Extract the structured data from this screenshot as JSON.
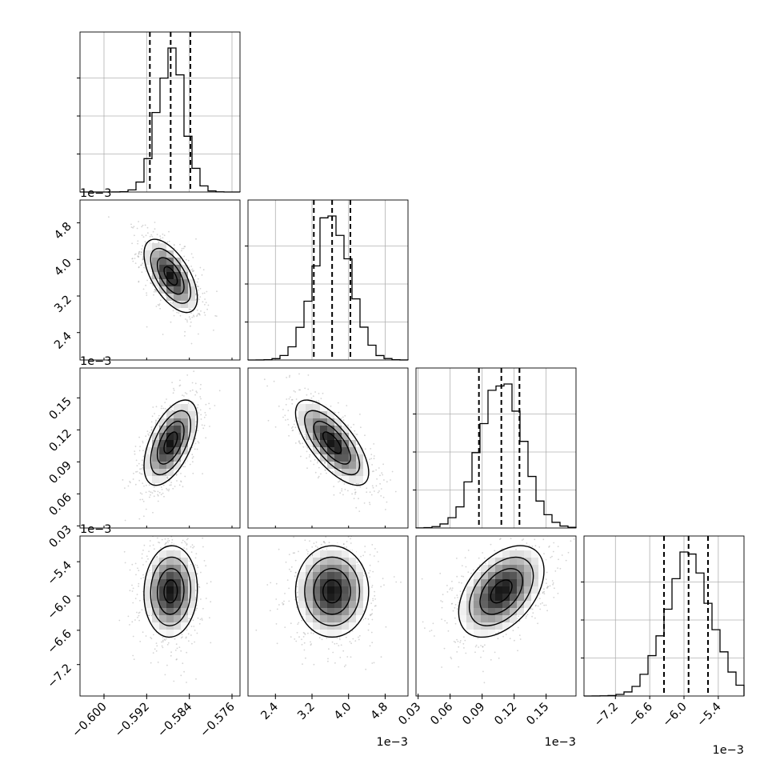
{
  "chart_data": {
    "type": "corner",
    "parameters": [
      {
        "index": 0,
        "range": [
          -0.6045,
          -0.5745
        ],
        "scale_label": "",
        "ticks": [
          -0.6,
          -0.592,
          -0.584,
          -0.576
        ],
        "tick_labels": [
          "−0.600",
          "−0.592",
          "−0.584",
          "−0.576"
        ],
        "quantiles": [
          -0.5914,
          -0.5875,
          -0.5838
        ],
        "peak_hint": -0.5878,
        "sigma": 0.0025
      },
      {
        "index": 1,
        "range": [
          1.8,
          5.3
        ],
        "scale_label": "1e−3",
        "ticks": [
          2.4,
          3.2,
          4.0,
          4.8
        ],
        "tick_labels": [
          "2.4",
          "3.2",
          "4.0",
          "4.8"
        ],
        "quantiles": [
          3.24,
          3.64,
          4.04
        ],
        "sigma": 0.4
      },
      {
        "index": 2,
        "range": [
          0.028,
          0.178
        ],
        "scale_label": "1e−3",
        "ticks": [
          0.03,
          0.06,
          0.09,
          0.12,
          0.15
        ],
        "tick_labels": [
          "0.03",
          "0.06",
          "0.09",
          "0.12",
          "0.15"
        ],
        "quantiles": [
          0.087,
          0.108,
          0.125
        ],
        "sigma": 0.02
      },
      {
        "index": 3,
        "range": [
          -7.75,
          -4.95
        ],
        "scale_label": "1e−3",
        "ticks": [
          -7.2,
          -6.6,
          -6.0,
          -5.4
        ],
        "tick_labels": [
          "−7.2",
          "−6.6",
          "−6.0",
          "−5.4"
        ],
        "quantiles": [
          -6.35,
          -5.92,
          -5.58
        ],
        "sigma": 0.4
      }
    ],
    "correlations": [
      [
        1.0,
        -0.6,
        0.55,
        0.05
      ],
      [
        -0.6,
        1.0,
        -0.7,
        0.0
      ],
      [
        0.55,
        -0.7,
        1.0,
        0.45
      ],
      [
        0.05,
        0.0,
        0.45,
        1.0
      ]
    ],
    "histogram_bins": 20,
    "contour_levels": [
      "0.5-sigma",
      "1-sigma",
      "1.5-sigma",
      "2-sigma"
    ],
    "colors": {
      "line": "#000000",
      "grid": "#b0b0b0",
      "scatter": "#a0a0a0",
      "axes": "#000000"
    },
    "grid": true
  }
}
